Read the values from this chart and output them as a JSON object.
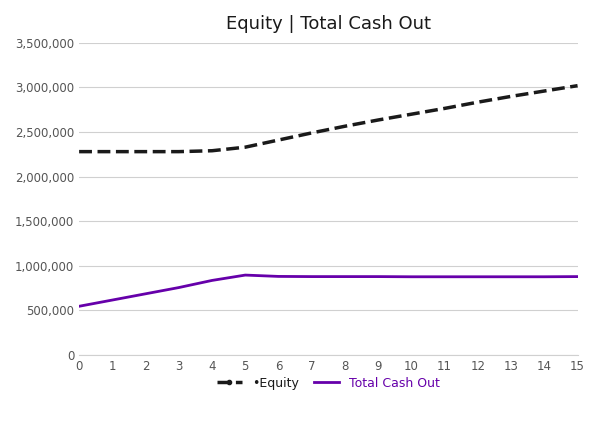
{
  "title": "Equity | Total Cash Out",
  "x": [
    0,
    1,
    2,
    3,
    4,
    5,
    6,
    7,
    8,
    9,
    10,
    11,
    12,
    13,
    14,
    15
  ],
  "equity": [
    2280000,
    2280000,
    2280000,
    2280000,
    2290000,
    2330000,
    2410000,
    2490000,
    2565000,
    2635000,
    2700000,
    2765000,
    2835000,
    2900000,
    2960000,
    3020000
  ],
  "total_cash_out": [
    545000,
    615000,
    685000,
    755000,
    835000,
    895000,
    880000,
    878000,
    878000,
    878000,
    876000,
    876000,
    876000,
    876000,
    876000,
    878000
  ],
  "equity_color": "#1a1a1a",
  "cash_out_color": "#6600aa",
  "background_color": "#ffffff",
  "grid_color": "#d0d0d0",
  "xlim": [
    0,
    15
  ],
  "ylim": [
    0,
    3500000
  ],
  "yticks": [
    0,
    500000,
    1000000,
    1500000,
    2000000,
    2500000,
    3000000,
    3500000
  ],
  "xticks": [
    0,
    1,
    2,
    3,
    4,
    5,
    6,
    7,
    8,
    9,
    10,
    11,
    12,
    13,
    14,
    15
  ],
  "legend_equity": "•Equity",
  "legend_cash_out": "Total Cash Out",
  "title_fontsize": 13,
  "tick_fontsize": 8.5
}
